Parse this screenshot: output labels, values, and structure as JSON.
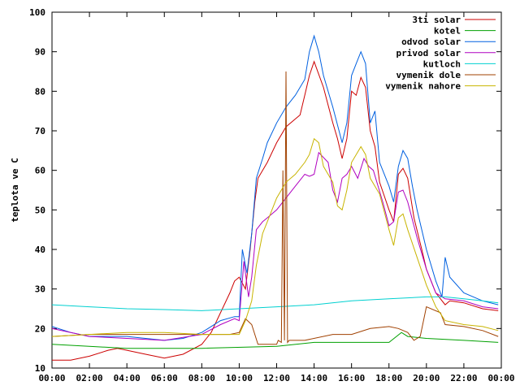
{
  "chart_data": {
    "type": "line",
    "title": "",
    "xlabel": "",
    "ylabel": "teplota ve C",
    "ylim": [
      10,
      100
    ],
    "xlim": [
      "00:00",
      "24:00"
    ],
    "grid": false,
    "legend_position": "top-right",
    "x_ticks": [
      "00:00",
      "02:00",
      "04:00",
      "06:00",
      "08:00",
      "10:00",
      "12:00",
      "14:00",
      "16:00",
      "18:00",
      "20:00",
      "22:00",
      "00:00"
    ],
    "y_ticks": [
      10,
      20,
      30,
      40,
      50,
      60,
      70,
      80,
      90,
      100
    ],
    "series": [
      {
        "name": "3ti solar",
        "color": "#cc0000",
        "points": [
          [
            "00:00",
            12
          ],
          [
            "01:00",
            12
          ],
          [
            "02:00",
            13
          ],
          [
            "03:00",
            14.5
          ],
          [
            "03:30",
            15
          ],
          [
            "04:00",
            14.5
          ],
          [
            "05:00",
            13.5
          ],
          [
            "06:00",
            12.5
          ],
          [
            "07:00",
            13.5
          ],
          [
            "08:00",
            16
          ],
          [
            "08:30",
            19
          ],
          [
            "09:00",
            24
          ],
          [
            "09:30",
            29
          ],
          [
            "09:45",
            32
          ],
          [
            "10:00",
            33
          ],
          [
            "10:20",
            30
          ],
          [
            "10:35",
            40
          ],
          [
            "10:50",
            52
          ],
          [
            "11:00",
            58
          ],
          [
            "11:30",
            62
          ],
          [
            "12:00",
            67
          ],
          [
            "12:30",
            71
          ],
          [
            "13:00",
            73
          ],
          [
            "13:15",
            74
          ],
          [
            "13:30",
            79
          ],
          [
            "13:45",
            84
          ],
          [
            "14:00",
            87.5
          ],
          [
            "14:30",
            81
          ],
          [
            "15:00",
            72
          ],
          [
            "15:15",
            68
          ],
          [
            "15:30",
            63
          ],
          [
            "15:45",
            68
          ],
          [
            "16:00",
            80
          ],
          [
            "16:15",
            79
          ],
          [
            "16:30",
            83.5
          ],
          [
            "16:45",
            81
          ],
          [
            "17:00",
            70
          ],
          [
            "17:15",
            66
          ],
          [
            "17:30",
            57
          ],
          [
            "18:00",
            50
          ],
          [
            "18:15",
            47
          ],
          [
            "18:30",
            59
          ],
          [
            "18:45",
            60.5
          ],
          [
            "19:00",
            58
          ],
          [
            "19:20",
            48
          ],
          [
            "19:45",
            40
          ],
          [
            "20:00",
            35
          ],
          [
            "20:30",
            29
          ],
          [
            "21:00",
            26
          ],
          [
            "21:15",
            27
          ],
          [
            "22:00",
            26.5
          ],
          [
            "23:00",
            25
          ],
          [
            "23:50",
            24.5
          ]
        ]
      },
      {
        "name": "kotel",
        "color": "#00a000",
        "points": [
          [
            "00:00",
            16
          ],
          [
            "04:00",
            15
          ],
          [
            "08:00",
            15
          ],
          [
            "12:00",
            15.5
          ],
          [
            "14:00",
            16.5
          ],
          [
            "16:00",
            16.5
          ],
          [
            "18:00",
            16.5
          ],
          [
            "18:40",
            19
          ],
          [
            "19:00",
            18
          ],
          [
            "20:00",
            17.5
          ],
          [
            "22:00",
            17
          ],
          [
            "23:50",
            16.5
          ]
        ]
      },
      {
        "name": "odvod solar",
        "color": "#0060e0",
        "points": [
          [
            "00:00",
            20.5
          ],
          [
            "01:00",
            19
          ],
          [
            "02:00",
            18
          ],
          [
            "04:00",
            18
          ],
          [
            "06:00",
            17
          ],
          [
            "07:00",
            17.5
          ],
          [
            "08:00",
            19
          ],
          [
            "09:00",
            22
          ],
          [
            "09:45",
            23
          ],
          [
            "10:00",
            23
          ],
          [
            "10:10",
            40
          ],
          [
            "10:25",
            34
          ],
          [
            "10:40",
            44
          ],
          [
            "10:55",
            58
          ],
          [
            "11:15",
            63
          ],
          [
            "11:30",
            67
          ],
          [
            "12:00",
            72
          ],
          [
            "12:30",
            76
          ],
          [
            "13:00",
            79
          ],
          [
            "13:15",
            81
          ],
          [
            "13:30",
            83
          ],
          [
            "13:45",
            90
          ],
          [
            "14:00",
            94
          ],
          [
            "14:15",
            90
          ],
          [
            "14:30",
            84
          ],
          [
            "15:00",
            76
          ],
          [
            "15:30",
            67
          ],
          [
            "15:45",
            72
          ],
          [
            "16:00",
            84
          ],
          [
            "16:15",
            87
          ],
          [
            "16:30",
            90
          ],
          [
            "16:45",
            87
          ],
          [
            "17:00",
            72
          ],
          [
            "17:15",
            75
          ],
          [
            "17:30",
            62
          ],
          [
            "18:00",
            56
          ],
          [
            "18:15",
            52
          ],
          [
            "18:30",
            61
          ],
          [
            "18:45",
            65
          ],
          [
            "19:00",
            63
          ],
          [
            "19:15",
            56
          ],
          [
            "19:30",
            50
          ],
          [
            "20:00",
            40
          ],
          [
            "20:30",
            32
          ],
          [
            "20:50",
            28
          ],
          [
            "21:00",
            38
          ],
          [
            "21:15",
            33
          ],
          [
            "22:00",
            29
          ],
          [
            "23:00",
            27
          ],
          [
            "23:50",
            26
          ]
        ]
      },
      {
        "name": "privod solar",
        "color": "#b000c0",
        "points": [
          [
            "00:00",
            20
          ],
          [
            "01:00",
            19
          ],
          [
            "02:00",
            18
          ],
          [
            "04:00",
            17.5
          ],
          [
            "06:00",
            17
          ],
          [
            "08:00",
            18.5
          ],
          [
            "09:00",
            21
          ],
          [
            "09:45",
            22.5
          ],
          [
            "10:00",
            22
          ],
          [
            "10:15",
            37
          ],
          [
            "10:30",
            28
          ],
          [
            "10:40",
            33
          ],
          [
            "10:55",
            45
          ],
          [
            "11:15",
            47
          ],
          [
            "11:30",
            48
          ],
          [
            "12:00",
            50
          ],
          [
            "12:30",
            53
          ],
          [
            "13:00",
            56
          ],
          [
            "13:30",
            59
          ],
          [
            "13:45",
            58.5
          ],
          [
            "14:00",
            59
          ],
          [
            "14:15",
            64.5
          ],
          [
            "14:45",
            62
          ],
          [
            "15:00",
            55
          ],
          [
            "15:15",
            52
          ],
          [
            "15:30",
            58
          ],
          [
            "15:45",
            59
          ],
          [
            "16:00",
            61
          ],
          [
            "16:20",
            58
          ],
          [
            "16:40",
            63
          ],
          [
            "16:55",
            61
          ],
          [
            "17:10",
            60
          ],
          [
            "17:25",
            56
          ],
          [
            "17:40",
            52
          ],
          [
            "18:00",
            46
          ],
          [
            "18:15",
            47
          ],
          [
            "18:30",
            54.5
          ],
          [
            "18:45",
            55
          ],
          [
            "19:00",
            52
          ],
          [
            "19:30",
            43
          ],
          [
            "20:00",
            35
          ],
          [
            "20:30",
            29
          ],
          [
            "21:00",
            27.5
          ],
          [
            "22:00",
            27
          ],
          [
            "23:00",
            25.5
          ],
          [
            "23:50",
            25
          ]
        ]
      },
      {
        "name": "kutloch",
        "color": "#00d0d0",
        "points": [
          [
            "00:00",
            26
          ],
          [
            "02:00",
            25.5
          ],
          [
            "04:00",
            25
          ],
          [
            "06:00",
            24.8
          ],
          [
            "08:00",
            24.5
          ],
          [
            "10:00",
            25
          ],
          [
            "12:00",
            25.5
          ],
          [
            "14:00",
            26
          ],
          [
            "16:00",
            27
          ],
          [
            "18:00",
            27.5
          ],
          [
            "20:00",
            28
          ],
          [
            "21:00",
            28
          ],
          [
            "22:00",
            27.5
          ],
          [
            "23:00",
            27
          ],
          [
            "23:50",
            26.5
          ]
        ]
      },
      {
        "name": "vymenik dole",
        "color": "#a04000",
        "points": [
          [
            "00:00",
            18
          ],
          [
            "02:00",
            18.5
          ],
          [
            "04:00",
            18.5
          ],
          [
            "06:00",
            18.5
          ],
          [
            "08:00",
            18.5
          ],
          [
            "09:30",
            18.5
          ],
          [
            "10:00",
            19
          ],
          [
            "10:20",
            22.5
          ],
          [
            "10:40",
            21
          ],
          [
            "11:00",
            16
          ],
          [
            "12:00",
            16
          ],
          [
            "12:05",
            17
          ],
          [
            "12:15",
            16.5
          ],
          [
            "12:20",
            60
          ],
          [
            "12:25",
            17
          ],
          [
            "12:30",
            85
          ],
          [
            "12:35",
            16.5
          ],
          [
            "12:40",
            17
          ],
          [
            "13:30",
            17
          ],
          [
            "15:00",
            18.5
          ],
          [
            "16:00",
            18.5
          ],
          [
            "17:00",
            20
          ],
          [
            "18:00",
            20.5
          ],
          [
            "18:30",
            20
          ],
          [
            "19:00",
            19
          ],
          [
            "19:20",
            17
          ],
          [
            "19:40",
            18
          ],
          [
            "20:00",
            25.5
          ],
          [
            "20:45",
            24
          ],
          [
            "21:00",
            21
          ],
          [
            "22:00",
            20.5
          ],
          [
            "23:00",
            19.5
          ],
          [
            "23:50",
            18
          ]
        ]
      },
      {
        "name": "vymenik nahore",
        "color": "#c8b400",
        "points": [
          [
            "00:00",
            18
          ],
          [
            "02:00",
            18.5
          ],
          [
            "04:00",
            19
          ],
          [
            "06:00",
            19
          ],
          [
            "08:00",
            18.5
          ],
          [
            "10:00",
            18.5
          ],
          [
            "10:20",
            22
          ],
          [
            "10:40",
            27
          ],
          [
            "10:55",
            36
          ],
          [
            "11:15",
            44
          ],
          [
            "11:30",
            47
          ],
          [
            "12:00",
            53
          ],
          [
            "12:30",
            57
          ],
          [
            "13:00",
            59
          ],
          [
            "13:30",
            62
          ],
          [
            "13:45",
            64
          ],
          [
            "14:00",
            68
          ],
          [
            "14:15",
            67
          ],
          [
            "14:30",
            61
          ],
          [
            "15:00",
            57
          ],
          [
            "15:15",
            51
          ],
          [
            "15:30",
            50
          ],
          [
            "15:45",
            55
          ],
          [
            "16:00",
            62
          ],
          [
            "16:30",
            66
          ],
          [
            "16:45",
            64
          ],
          [
            "17:00",
            58
          ],
          [
            "17:30",
            54
          ],
          [
            "18:00",
            45
          ],
          [
            "18:15",
            41
          ],
          [
            "18:30",
            48
          ],
          [
            "18:45",
            49
          ],
          [
            "19:00",
            45
          ],
          [
            "19:30",
            38
          ],
          [
            "20:00",
            31
          ],
          [
            "20:30",
            25.5
          ],
          [
            "21:00",
            22
          ],
          [
            "22:00",
            21
          ],
          [
            "23:00",
            20.5
          ],
          [
            "23:50",
            19.5
          ]
        ]
      }
    ]
  }
}
